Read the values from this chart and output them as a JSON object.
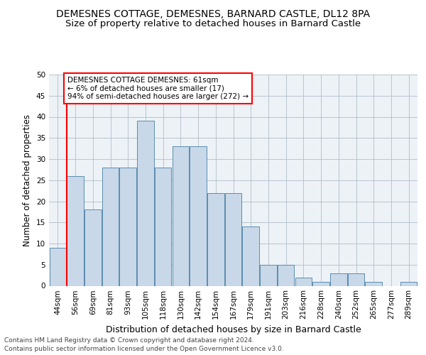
{
  "title1": "DEMESNES COTTAGE, DEMESNES, BARNARD CASTLE, DL12 8PA",
  "title2": "Size of property relative to detached houses in Barnard Castle",
  "xlabel": "Distribution of detached houses by size in Barnard Castle",
  "ylabel": "Number of detached properties",
  "categories": [
    "44sqm",
    "56sqm",
    "69sqm",
    "81sqm",
    "93sqm",
    "105sqm",
    "118sqm",
    "130sqm",
    "142sqm",
    "154sqm",
    "167sqm",
    "179sqm",
    "191sqm",
    "203sqm",
    "216sqm",
    "228sqm",
    "240sqm",
    "252sqm",
    "265sqm",
    "277sqm",
    "289sqm"
  ],
  "bar_heights": [
    9,
    26,
    18,
    28,
    28,
    39,
    28,
    33,
    33,
    22,
    22,
    14,
    5,
    5,
    2,
    1,
    3,
    3,
    1,
    0,
    1
  ],
  "bar_color": "#c8d8e8",
  "bar_edge_color": "#5b8db0",
  "vline_x": 0.5,
  "vline_color": "red",
  "annotation_text": "DEMESNES COTTAGE DEMESNES: 61sqm\n← 6% of detached houses are smaller (17)\n94% of semi-detached houses are larger (272) →",
  "annotation_box_color": "white",
  "annotation_box_edge": "red",
  "ylim": [
    0,
    50
  ],
  "yticks": [
    0,
    5,
    10,
    15,
    20,
    25,
    30,
    35,
    40,
    45,
    50
  ],
  "footer1": "Contains HM Land Registry data © Crown copyright and database right 2024.",
  "footer2": "Contains public sector information licensed under the Open Government Licence v3.0.",
  "bg_color": "#edf2f7",
  "grid_color": "#b0bec8",
  "title1_fontsize": 10,
  "title2_fontsize": 9.5,
  "xlabel_fontsize": 9,
  "ylabel_fontsize": 8.5,
  "tick_fontsize": 7.5,
  "annotation_fontsize": 7.5,
  "footer_fontsize": 6.5
}
